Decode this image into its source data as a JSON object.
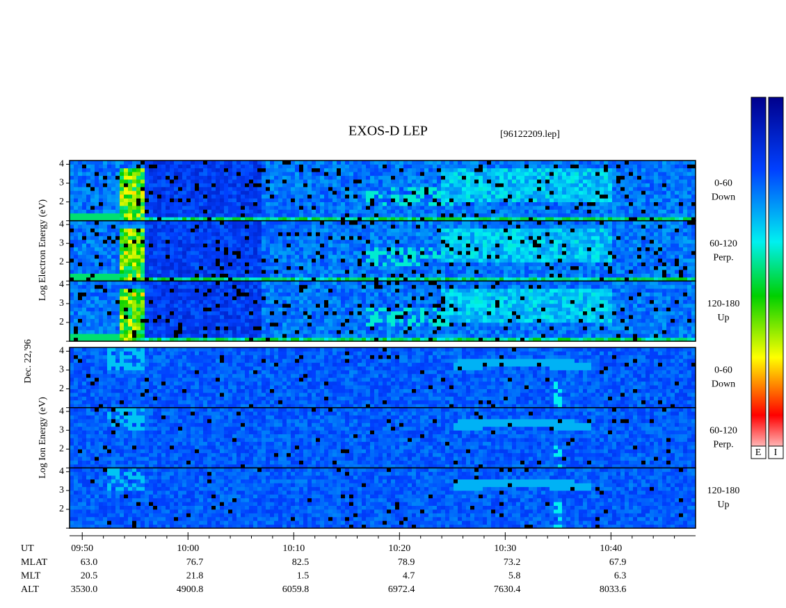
{
  "title": "EXOS-D LEP",
  "file": "[96122209.lep]",
  "date": "Dec. 22,'96",
  "ylim": [
    1,
    4.2
  ],
  "yticks": [
    2,
    3,
    4
  ],
  "electron": {
    "label": "Log Electron Energy (eV)",
    "panels": [
      {
        "range": "0-60",
        "direction": "Down"
      },
      {
        "range": "60-120",
        "direction": "Perp."
      },
      {
        "range": "120-180",
        "direction": "Up"
      }
    ]
  },
  "ion": {
    "label": "Log Ion Energy (eV)",
    "panels": [
      {
        "range": "0-60",
        "direction": "Down"
      },
      {
        "range": "60-120",
        "direction": "Perp."
      },
      {
        "range": "120-180",
        "direction": "Up"
      }
    ]
  },
  "time_axis": {
    "label": "UT",
    "xlim": [
      588.8,
      648
    ],
    "ticks": [
      {
        "value": 590,
        "label": "09:50"
      },
      {
        "value": 600,
        "label": "10:00"
      },
      {
        "value": 610,
        "label": "10:10"
      },
      {
        "value": 620,
        "label": "10:20"
      },
      {
        "value": 630,
        "label": "10:30"
      },
      {
        "value": 640,
        "label": "10:40"
      }
    ],
    "minor_ticks": [
      592,
      594,
      596,
      598,
      602,
      604,
      606,
      608,
      612,
      614,
      616,
      618,
      622,
      624,
      626,
      628,
      632,
      634,
      636,
      638,
      642,
      644,
      646
    ]
  },
  "ephemeris": [
    {
      "label": "MLAT",
      "values": [
        "63.0",
        "76.7",
        "82.5",
        "78.9",
        "73.2",
        "67.9"
      ]
    },
    {
      "label": "MLT",
      "values": [
        "20.5",
        "21.8",
        "1.5",
        "4.7",
        "5.8",
        "6.3"
      ]
    },
    {
      "label": "ALT",
      "values": [
        "3530.0",
        "4900.8",
        "6059.8",
        "6972.4",
        "7630.4",
        "8033.6"
      ]
    }
  ],
  "colorbar": {
    "labels": [
      "E",
      "I"
    ]
  }
}
